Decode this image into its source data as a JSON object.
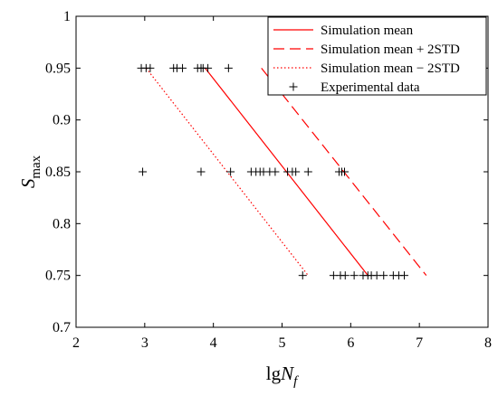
{
  "chart_data": {
    "type": "scatter",
    "xlabel": {
      "main": "lg",
      "italic": "N",
      "sub": "f"
    },
    "ylabel": {
      "italic": "S",
      "sub": "max"
    },
    "xlim": [
      2,
      8
    ],
    "ylim": [
      0.7,
      1.0
    ],
    "xticks": [
      "2",
      "3",
      "4",
      "5",
      "6",
      "7",
      "8"
    ],
    "yticks": [
      "0.7",
      "0.75",
      "0.8",
      "0.85",
      "0.9",
      "0.95",
      "1"
    ],
    "grid": false,
    "legend_position": "top-right",
    "series": [
      {
        "name": "Simulation mean",
        "kind": "line",
        "style": "solid",
        "color": "#ff0000",
        "x": [
          3.88,
          6.25
        ],
        "y": [
          0.95,
          0.75
        ]
      },
      {
        "name": "Simulation mean + 2STD",
        "kind": "line",
        "style": "dashed",
        "color": "#ff0000",
        "x": [
          4.7,
          7.1
        ],
        "y": [
          0.95,
          0.75
        ]
      },
      {
        "name": "Simulation mean − 2STD",
        "kind": "line",
        "style": "dotted",
        "color": "#ff0000",
        "x": [
          3.02,
          5.38
        ],
        "y": [
          0.95,
          0.75
        ]
      },
      {
        "name": "Experimental data",
        "kind": "marker",
        "marker": "plus",
        "color": "#000000",
        "points": [
          [
            2.95,
            0.95
          ],
          [
            3.02,
            0.95
          ],
          [
            3.08,
            0.95
          ],
          [
            3.42,
            0.95
          ],
          [
            3.47,
            0.95
          ],
          [
            3.55,
            0.95
          ],
          [
            3.77,
            0.95
          ],
          [
            3.82,
            0.95
          ],
          [
            3.85,
            0.95
          ],
          [
            3.92,
            0.95
          ],
          [
            4.22,
            0.95
          ],
          [
            2.97,
            0.85
          ],
          [
            3.82,
            0.85
          ],
          [
            4.25,
            0.85
          ],
          [
            4.55,
            0.85
          ],
          [
            4.62,
            0.85
          ],
          [
            4.68,
            0.85
          ],
          [
            4.73,
            0.85
          ],
          [
            4.82,
            0.85
          ],
          [
            4.9,
            0.85
          ],
          [
            5.08,
            0.85
          ],
          [
            5.15,
            0.85
          ],
          [
            5.2,
            0.85
          ],
          [
            5.38,
            0.85
          ],
          [
            5.83,
            0.85
          ],
          [
            5.87,
            0.85
          ],
          [
            5.91,
            0.85
          ],
          [
            5.3,
            0.75
          ],
          [
            5.75,
            0.75
          ],
          [
            5.85,
            0.75
          ],
          [
            5.92,
            0.75
          ],
          [
            6.05,
            0.75
          ],
          [
            6.18,
            0.75
          ],
          [
            6.25,
            0.75
          ],
          [
            6.3,
            0.75
          ],
          [
            6.38,
            0.75
          ],
          [
            6.48,
            0.75
          ],
          [
            6.62,
            0.75
          ],
          [
            6.7,
            0.75
          ],
          [
            6.78,
            0.75
          ]
        ]
      }
    ]
  }
}
